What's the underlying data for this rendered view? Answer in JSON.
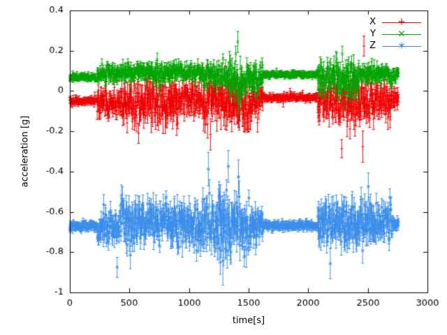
{
  "chart_data": {
    "type": "scatter",
    "style": "points with vertical errorbars",
    "xlabel": "time[s]",
    "ylabel": "acceleration [g]",
    "xlim": [
      0,
      3000
    ],
    "ylim": [
      -1,
      0.4
    ],
    "xticks": [
      0,
      500,
      1000,
      1500,
      2000,
      2500,
      3000
    ],
    "xtick_labels": [
      "0",
      "500",
      "1000",
      "1500",
      "2000",
      "2500",
      "3000"
    ],
    "yticks": [
      -1,
      -0.8,
      -0.6,
      -0.4,
      -0.2,
      0,
      0.2,
      0.4
    ],
    "ytick_labels": [
      "-1",
      "-0.8",
      "-0.6",
      "-0.4",
      "-0.2",
      "0",
      "0.2",
      "0.4"
    ],
    "grid": false,
    "legend_position": "top-right",
    "background": "#ffffff",
    "axis_color": "#000000",
    "time_range_s": [
      0,
      2760
    ],
    "sample_dt": 3,
    "series": [
      {
        "name": "X",
        "color": "#ee0000",
        "marker": "plus",
        "baseline_g": -0.05,
        "segments": [
          [
            0,
            230,
            -0.048,
            0.008
          ],
          [
            230,
            430,
            -0.052,
            0.03
          ],
          [
            430,
            620,
            -0.06,
            0.045
          ],
          [
            620,
            900,
            -0.055,
            0.05
          ],
          [
            900,
            1120,
            -0.04,
            0.035
          ],
          [
            1120,
            1310,
            -0.06,
            0.055
          ],
          [
            1310,
            1520,
            -0.075,
            0.055
          ],
          [
            1520,
            1620,
            -0.05,
            0.03
          ],
          [
            1620,
            2080,
            -0.032,
            0.007
          ],
          [
            2080,
            2200,
            -0.05,
            0.045
          ],
          [
            2200,
            2500,
            -0.055,
            0.05
          ],
          [
            2500,
            2700,
            -0.045,
            0.04
          ],
          [
            2700,
            2760,
            -0.04,
            0.02
          ]
        ],
        "spikes": [
          [
            1300,
            0.09,
            0.035
          ],
          [
            1790,
            -0.06,
            0.02
          ]
        ]
      },
      {
        "name": "Y",
        "color": "#00a500",
        "marker": "cross",
        "baseline_g": 0.08,
        "segments": [
          [
            0,
            230,
            0.068,
            0.007
          ],
          [
            230,
            430,
            0.09,
            0.018
          ],
          [
            430,
            700,
            0.095,
            0.02
          ],
          [
            700,
            900,
            0.09,
            0.022
          ],
          [
            900,
            1120,
            0.095,
            0.018
          ],
          [
            1120,
            1340,
            0.08,
            0.025
          ],
          [
            1340,
            1460,
            0.055,
            0.04
          ],
          [
            1460,
            1620,
            0.07,
            0.03
          ],
          [
            1620,
            2080,
            0.082,
            0.007
          ],
          [
            2080,
            2250,
            0.07,
            0.035
          ],
          [
            2250,
            2430,
            0.06,
            0.04
          ],
          [
            2430,
            2700,
            0.09,
            0.02
          ],
          [
            2700,
            2760,
            0.08,
            0.012
          ]
        ],
        "spikes": [
          [
            1392,
            0.185,
            0.038
          ]
        ]
      },
      {
        "name": "Z",
        "color": "#3b8eea",
        "marker": "star",
        "baseline_g": -0.67,
        "segments": [
          [
            0,
            230,
            -0.672,
            0.01
          ],
          [
            230,
            430,
            -0.67,
            0.035
          ],
          [
            430,
            640,
            -0.66,
            0.05
          ],
          [
            640,
            860,
            -0.635,
            0.045
          ],
          [
            860,
            1060,
            -0.66,
            0.05
          ],
          [
            1060,
            1230,
            -0.68,
            0.055
          ],
          [
            1230,
            1340,
            -0.67,
            0.08
          ],
          [
            1340,
            1520,
            -0.67,
            0.06
          ],
          [
            1520,
            1620,
            -0.665,
            0.04
          ],
          [
            1620,
            2080,
            -0.668,
            0.009
          ],
          [
            2080,
            2300,
            -0.655,
            0.05
          ],
          [
            2300,
            2550,
            -0.66,
            0.05
          ],
          [
            2550,
            2700,
            -0.665,
            0.04
          ],
          [
            2700,
            2760,
            -0.67,
            0.015
          ]
        ],
        "spikes": [
          [
            397,
            -0.875,
            0.05
          ],
          [
            1252,
            -0.52,
            0.07
          ],
          [
            1262,
            -0.85,
            0.06
          ]
        ]
      }
    ]
  }
}
